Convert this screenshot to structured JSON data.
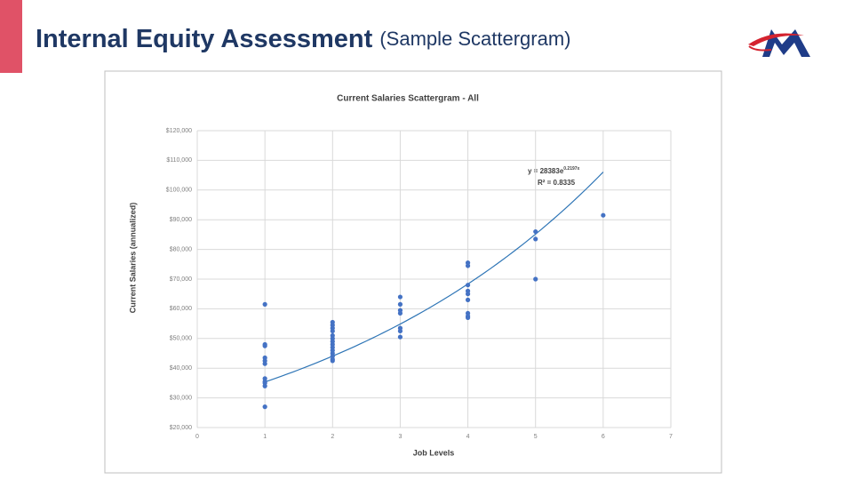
{
  "slide": {
    "title": "Internal Equity Assessment",
    "subtitle": "(Sample Scattergram)"
  },
  "chart_data": {
    "type": "scatter",
    "title": "Current Salaries Scattergram - All",
    "x_label": "Job Levels",
    "y_label": "Current Salaries (annualized)",
    "color": "#4472c4",
    "grid": true,
    "x": [
      1,
      1,
      1,
      1,
      1,
      1,
      1,
      1,
      1,
      1,
      1,
      2,
      2,
      2,
      2,
      2,
      2,
      2,
      2,
      2,
      2,
      2,
      2,
      2,
      2,
      3,
      3,
      3,
      3,
      3,
      3,
      3,
      4,
      4,
      4,
      4,
      4,
      4,
      4,
      4,
      4,
      5,
      5,
      5,
      6
    ],
    "values": [
      61500,
      48000,
      47500,
      43500,
      42500,
      41500,
      36500,
      35500,
      35000,
      34000,
      27000,
      55500,
      54500,
      53500,
      52500,
      51000,
      50000,
      49000,
      48000,
      47000,
      46000,
      45000,
      44000,
      43000,
      42500,
      64000,
      61500,
      59500,
      58500,
      53500,
      52500,
      50500,
      75500,
      74500,
      68000,
      66000,
      65000,
      63000,
      58500,
      57500,
      57000,
      86000,
      83500,
      70000,
      91500
    ],
    "xlim": [
      0,
      7
    ],
    "xticks": [
      0,
      1,
      2,
      3,
      4,
      5,
      6,
      7
    ],
    "ylim": [
      20000,
      120000
    ],
    "yticks": [
      {
        "value": 20000,
        "label": "$20,000"
      },
      {
        "value": 30000,
        "label": "$30,000"
      },
      {
        "value": 40000,
        "label": "$40,000"
      },
      {
        "value": 50000,
        "label": "$50,000"
      },
      {
        "value": 60000,
        "label": "$60,000"
      },
      {
        "value": 70000,
        "label": "$70,000"
      },
      {
        "value": 80000,
        "label": "$80,000"
      },
      {
        "value": 90000,
        "label": "$90,000"
      },
      {
        "value": 100000,
        "label": "$100,000"
      },
      {
        "value": 110000,
        "label": "$110,000"
      },
      {
        "value": 120000,
        "label": "$120,000"
      }
    ],
    "trendline": {
      "a": 28383,
      "b": 0.2197,
      "color": "#2e75b6",
      "label": "y = 28383e",
      "exponent_label": "0.2197x",
      "r2_label": "R² = 0.8335"
    }
  }
}
